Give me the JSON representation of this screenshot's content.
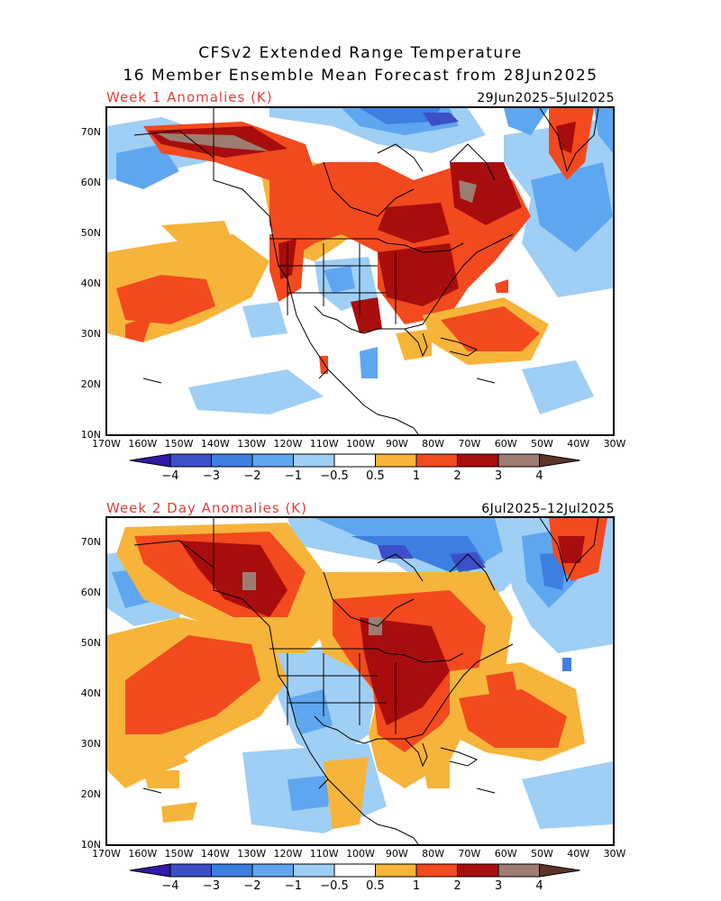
{
  "title_line1": "CFSv2 Extended Range Temperature",
  "title_line2": "16 Member Ensemble Mean Forecast from 28Jun2025",
  "panels": [
    {
      "label": "Week 1 Anomalies (K)",
      "dates": "29Jun2025–5Jul2025"
    },
    {
      "label": "Week 2 Day Anomalies (K)",
      "dates": "6Jul2025–12Jul2025"
    }
  ],
  "lat_ticks": [
    "70N",
    "60N",
    "50N",
    "40N",
    "30N",
    "20N",
    "10N"
  ],
  "lon_ticks": [
    "170W",
    "160W",
    "150W",
    "140W",
    "130W",
    "120W",
    "110W",
    "100W",
    "90W",
    "80W",
    "70W",
    "60W",
    "50W",
    "40W",
    "30W"
  ],
  "colorbar": {
    "labels": [
      "−4",
      "−3",
      "−2",
      "−1",
      "−0.5",
      "0.5",
      "1",
      "2",
      "3",
      "4"
    ],
    "colors": [
      "#3319a8",
      "#3d4fc8",
      "#3d7fe0",
      "#5fa6f0",
      "#9fcff5",
      "#ffffff",
      "#f7b43a",
      "#f24a1e",
      "#a80d0d",
      "#9c7d72",
      "#5e3327"
    ]
  }
}
